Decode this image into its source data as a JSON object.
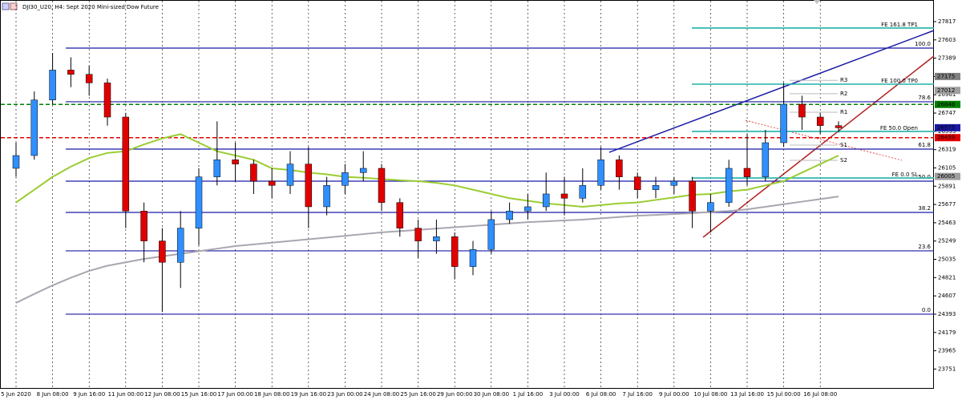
{
  "chart_data": {
    "type": "candlestick",
    "title": "DJI30_U20, H4:  Sept 2020 Mini-sized Dow Future",
    "categories": [
      "5 Jun 2020",
      null,
      "8 Jun 08:00",
      null,
      "9 Jun 16:00",
      null,
      "11 Jun 00:00",
      null,
      "12 Jun 08:00",
      null,
      "15 Jun 16:00",
      null,
      "17 Jun 00:00",
      null,
      "18 Jun 08:00",
      null,
      "19 Jun 16:00",
      null,
      "23 Jun 00:00",
      null,
      "24 Jun 08:00",
      null,
      "25 Jun 16:00",
      null,
      "29 Jun 00:00",
      null,
      "30 Jun 08:00",
      null,
      "1 Jul 16:00",
      null,
      "3 Jul 00:00",
      null,
      "6 Jul 08:00",
      null,
      "7 Jul 16:00",
      null,
      "9 Jul 00:00",
      null,
      "10 Jul 08:00",
      null,
      "13 Jul 16:00",
      null,
      "15 Jul 00:00",
      null,
      "16 Jul 08:00",
      null
    ],
    "open": [
      26100,
      26250,
      26900,
      27250,
      27200,
      27100,
      26700,
      25600,
      25250,
      25000,
      25400,
      26000,
      26200,
      26150,
      25950,
      25900,
      26150,
      25650,
      25900,
      26050,
      26100,
      25700,
      25400,
      25250,
      25300,
      24950,
      25150,
      25500,
      25600,
      25650,
      25800,
      25750,
      25900,
      26200,
      26000,
      25850,
      25900,
      25950,
      25600,
      25700,
      26100,
      26000,
      26400,
      26850,
      26700,
      26600
    ],
    "high": [
      26400,
      27000,
      27450,
      27400,
      27300,
      27150,
      26750,
      25700,
      25400,
      25600,
      26100,
      26650,
      26400,
      26200,
      26100,
      26300,
      26350,
      26000,
      26150,
      26300,
      26150,
      25750,
      25500,
      25500,
      25350,
      25250,
      25600,
      25700,
      25800,
      26050,
      26000,
      26100,
      26350,
      26250,
      26050,
      26000,
      26000,
      26000,
      25800,
      26200,
      26500,
      26550,
      27100,
      26950,
      26750,
      26650
    ],
    "low": [
      26000,
      26200,
      26850,
      27050,
      26950,
      26600,
      25400,
      25000,
      24420,
      24700,
      25200,
      25900,
      25950,
      25800,
      25750,
      25800,
      25400,
      25550,
      25800,
      25950,
      25600,
      25300,
      25050,
      25100,
      24800,
      24850,
      25100,
      25450,
      25500,
      25600,
      25550,
      25700,
      25850,
      25850,
      25750,
      25750,
      25800,
      25400,
      25350,
      25650,
      25900,
      25950,
      26350,
      26550,
      26500,
      26520
    ],
    "close": [
      26250,
      26900,
      27250,
      27200,
      27100,
      26700,
      25600,
      25250,
      25000,
      25400,
      26000,
      26200,
      26150,
      25950,
      25900,
      26150,
      25650,
      25900,
      26050,
      26100,
      25700,
      25400,
      25250,
      25300,
      24950,
      25150,
      25500,
      25600,
      25650,
      25800,
      25750,
      25900,
      26200,
      26000,
      25850,
      25900,
      25950,
      25600,
      25700,
      26100,
      26000,
      26400,
      26850,
      26700,
      26600,
      26575
    ],
    "up_color": "#2f8fff",
    "down_color": "#e00000",
    "series": [
      {
        "color": "#a9a6b0",
        "values": [
          24525,
          24630,
          24730,
          24820,
          24900,
          24960,
          25000,
          25040,
          25070,
          25100,
          25130,
          25160,
          25190,
          25210,
          25230,
          25250,
          25270,
          25290,
          25310,
          25330,
          25350,
          25365,
          25380,
          25395,
          25410,
          25425,
          25440,
          25455,
          25470,
          25480,
          25490,
          25500,
          25515,
          25530,
          25545,
          25555,
          25565,
          25575,
          25590,
          25600,
          25620,
          25650,
          25680,
          25710,
          25740,
          25770
        ]
      },
      {
        "color": "#9acd32",
        "values": [
          25700,
          25850,
          26000,
          26120,
          26220,
          26280,
          26300,
          26380,
          26450,
          26500,
          26400,
          26300,
          26250,
          26200,
          26100,
          26080,
          26050,
          26030,
          26000,
          25990,
          25975,
          25960,
          25950,
          25930,
          25900,
          25850,
          25800,
          25750,
          25720,
          25690,
          25670,
          25650,
          25670,
          25690,
          25700,
          25730,
          25760,
          25790,
          25800,
          25830,
          25850,
          25900,
          25950,
          26050,
          26150,
          26250
        ]
      }
    ],
    "ylim": [
      23520,
      28070
    ],
    "yticks": [
      27817,
      27603,
      27389,
      27175,
      26961,
      26747,
      26533,
      26319,
      26105,
      25891,
      25677,
      25463,
      25249,
      25035,
      24821,
      24607,
      24393,
      24179,
      23965,
      23751
    ],
    "fib_levels": [
      {
        "label": "100.0",
        "value": 27507
      },
      {
        "label": "78.6",
        "value": 26879
      },
      {
        "label": "61.8",
        "value": 26325
      },
      {
        "label": "50.0",
        "value": 25950
      },
      {
        "label": "38.2",
        "value": 25584
      },
      {
        "label": "23.6",
        "value": 25134
      },
      {
        "label": "0.0",
        "value": 24393
      }
    ],
    "fe_levels": [
      {
        "label": "FE 161.8 TP1",
        "value": 27742
      },
      {
        "label": "FE 100.0 TP0",
        "value": 27085
      },
      {
        "label": "FE 50.0 Open",
        "value": 26532
      },
      {
        "label": "FE 0.0 SL",
        "value": 25987
      }
    ],
    "pivots": [
      {
        "label": "R3",
        "value": 27130
      },
      {
        "label": "R2",
        "value": 26973
      },
      {
        "label": "R1",
        "value": 26757
      },
      {
        "label": "S1",
        "value": 26372
      },
      {
        "label": "S2",
        "value": 26194
      }
    ],
    "dashed_levels": [
      {
        "value": 26848,
        "color": "#008000"
      },
      {
        "value": 26459,
        "color": "#e00000"
      }
    ],
    "price_labels": [
      {
        "value": 27175,
        "color": "#808080"
      },
      {
        "value": 27012,
        "color": "#a0a0a0"
      },
      {
        "value": 26848,
        "color": "#008000"
      },
      {
        "value": 26575,
        "color": "#1a1aa6"
      },
      {
        "value": 26459,
        "color": "#e00000"
      },
      {
        "value": 26005,
        "color": "#a0a0a0"
      }
    ]
  }
}
